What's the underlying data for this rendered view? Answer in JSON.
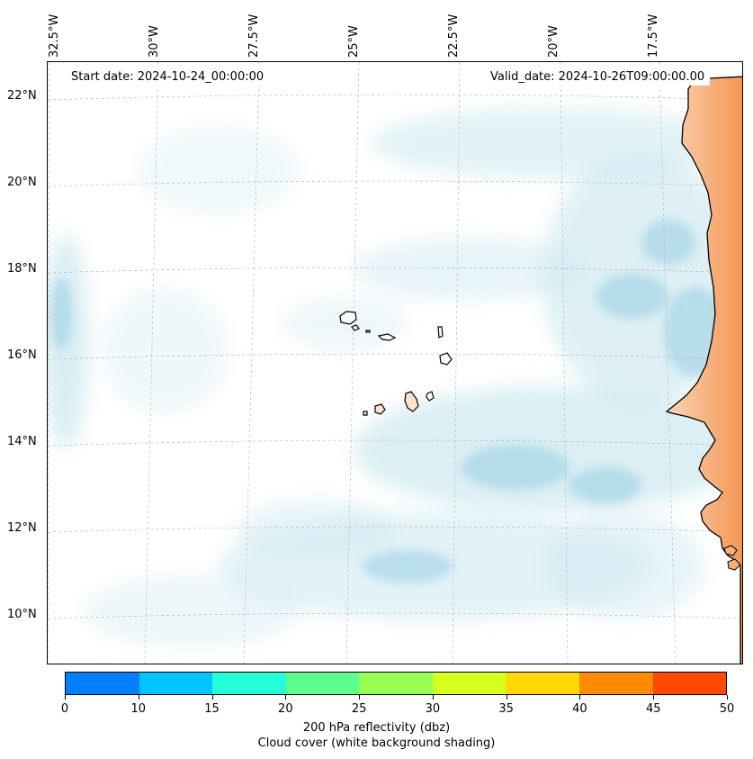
{
  "map": {
    "lon_labels": [
      {
        "text": "32.5°W",
        "lon": -32.5
      },
      {
        "text": "30°W",
        "lon": -30
      },
      {
        "text": "27.5°W",
        "lon": -27.5
      },
      {
        "text": "25°W",
        "lon": -25
      },
      {
        "text": "22.5°W",
        "lon": -22.5
      },
      {
        "text": "20°W",
        "lon": -20
      },
      {
        "text": "17.5°W",
        "lon": -17.5
      }
    ],
    "lat_labels": [
      {
        "text": "22°N",
        "lat": 22
      },
      {
        "text": "20°N",
        "lat": 20
      },
      {
        "text": "18°N",
        "lat": 18
      },
      {
        "text": "16°N",
        "lat": 16
      },
      {
        "text": "14°N",
        "lat": 14
      },
      {
        "text": "12°N",
        "lat": 12
      },
      {
        "text": "10°N",
        "lat": 10
      }
    ],
    "start_date": "Start date: 2024-10-24_00:00:00",
    "valid_date": "Valid_date: 2024-10-26T09:00:00.00",
    "colors": {
      "cloud": "#a9d8e6",
      "land": "#f5a060",
      "coast": "#000000",
      "grid": "#b0b0b0"
    }
  },
  "colorbar": {
    "ticks": [
      "0",
      "10",
      "15",
      "20",
      "25",
      "30",
      "35",
      "40",
      "45",
      "50"
    ],
    "colors": [
      "#0080ff",
      "#00c5ff",
      "#22ffd8",
      "#5cff8c",
      "#99ff55",
      "#d6ff1e",
      "#ffd800",
      "#ff8c00",
      "#ff4a00"
    ],
    "label_line1": "200 hPa reflectivity (dbz)",
    "label_line2": "Cloud cover (white background shading)"
  }
}
